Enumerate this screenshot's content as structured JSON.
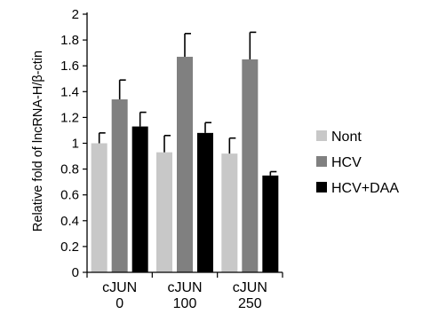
{
  "chart_data": {
    "type": "bar",
    "ylabel": "Relative fold of lncRNA-H/β-ctin",
    "xlabel": "",
    "ylim": [
      0,
      2
    ],
    "y_ticks": [
      "0",
      "0.2",
      "0.4",
      "0.6",
      "0.8",
      "1",
      "1.2",
      "1.4",
      "1.6",
      "1.8",
      "2"
    ],
    "categories": [
      [
        "cJUN",
        "0"
      ],
      [
        "cJUN",
        "100"
      ],
      [
        "cJUN",
        "250"
      ]
    ],
    "series": [
      {
        "name": "Nont",
        "color": "#c8c8c8",
        "values": [
          1.0,
          0.93,
          0.92
        ],
        "errors": [
          0.08,
          0.13,
          0.12
        ]
      },
      {
        "name": "HCV",
        "color": "#808080",
        "values": [
          1.34,
          1.67,
          1.65
        ],
        "errors": [
          0.15,
          0.18,
          0.21
        ]
      },
      {
        "name": "HCV+DAA",
        "color": "#000000",
        "values": [
          1.13,
          1.08,
          0.75
        ],
        "errors": [
          0.11,
          0.08,
          0.03
        ]
      }
    ],
    "grid": false,
    "legend_position": "right"
  }
}
